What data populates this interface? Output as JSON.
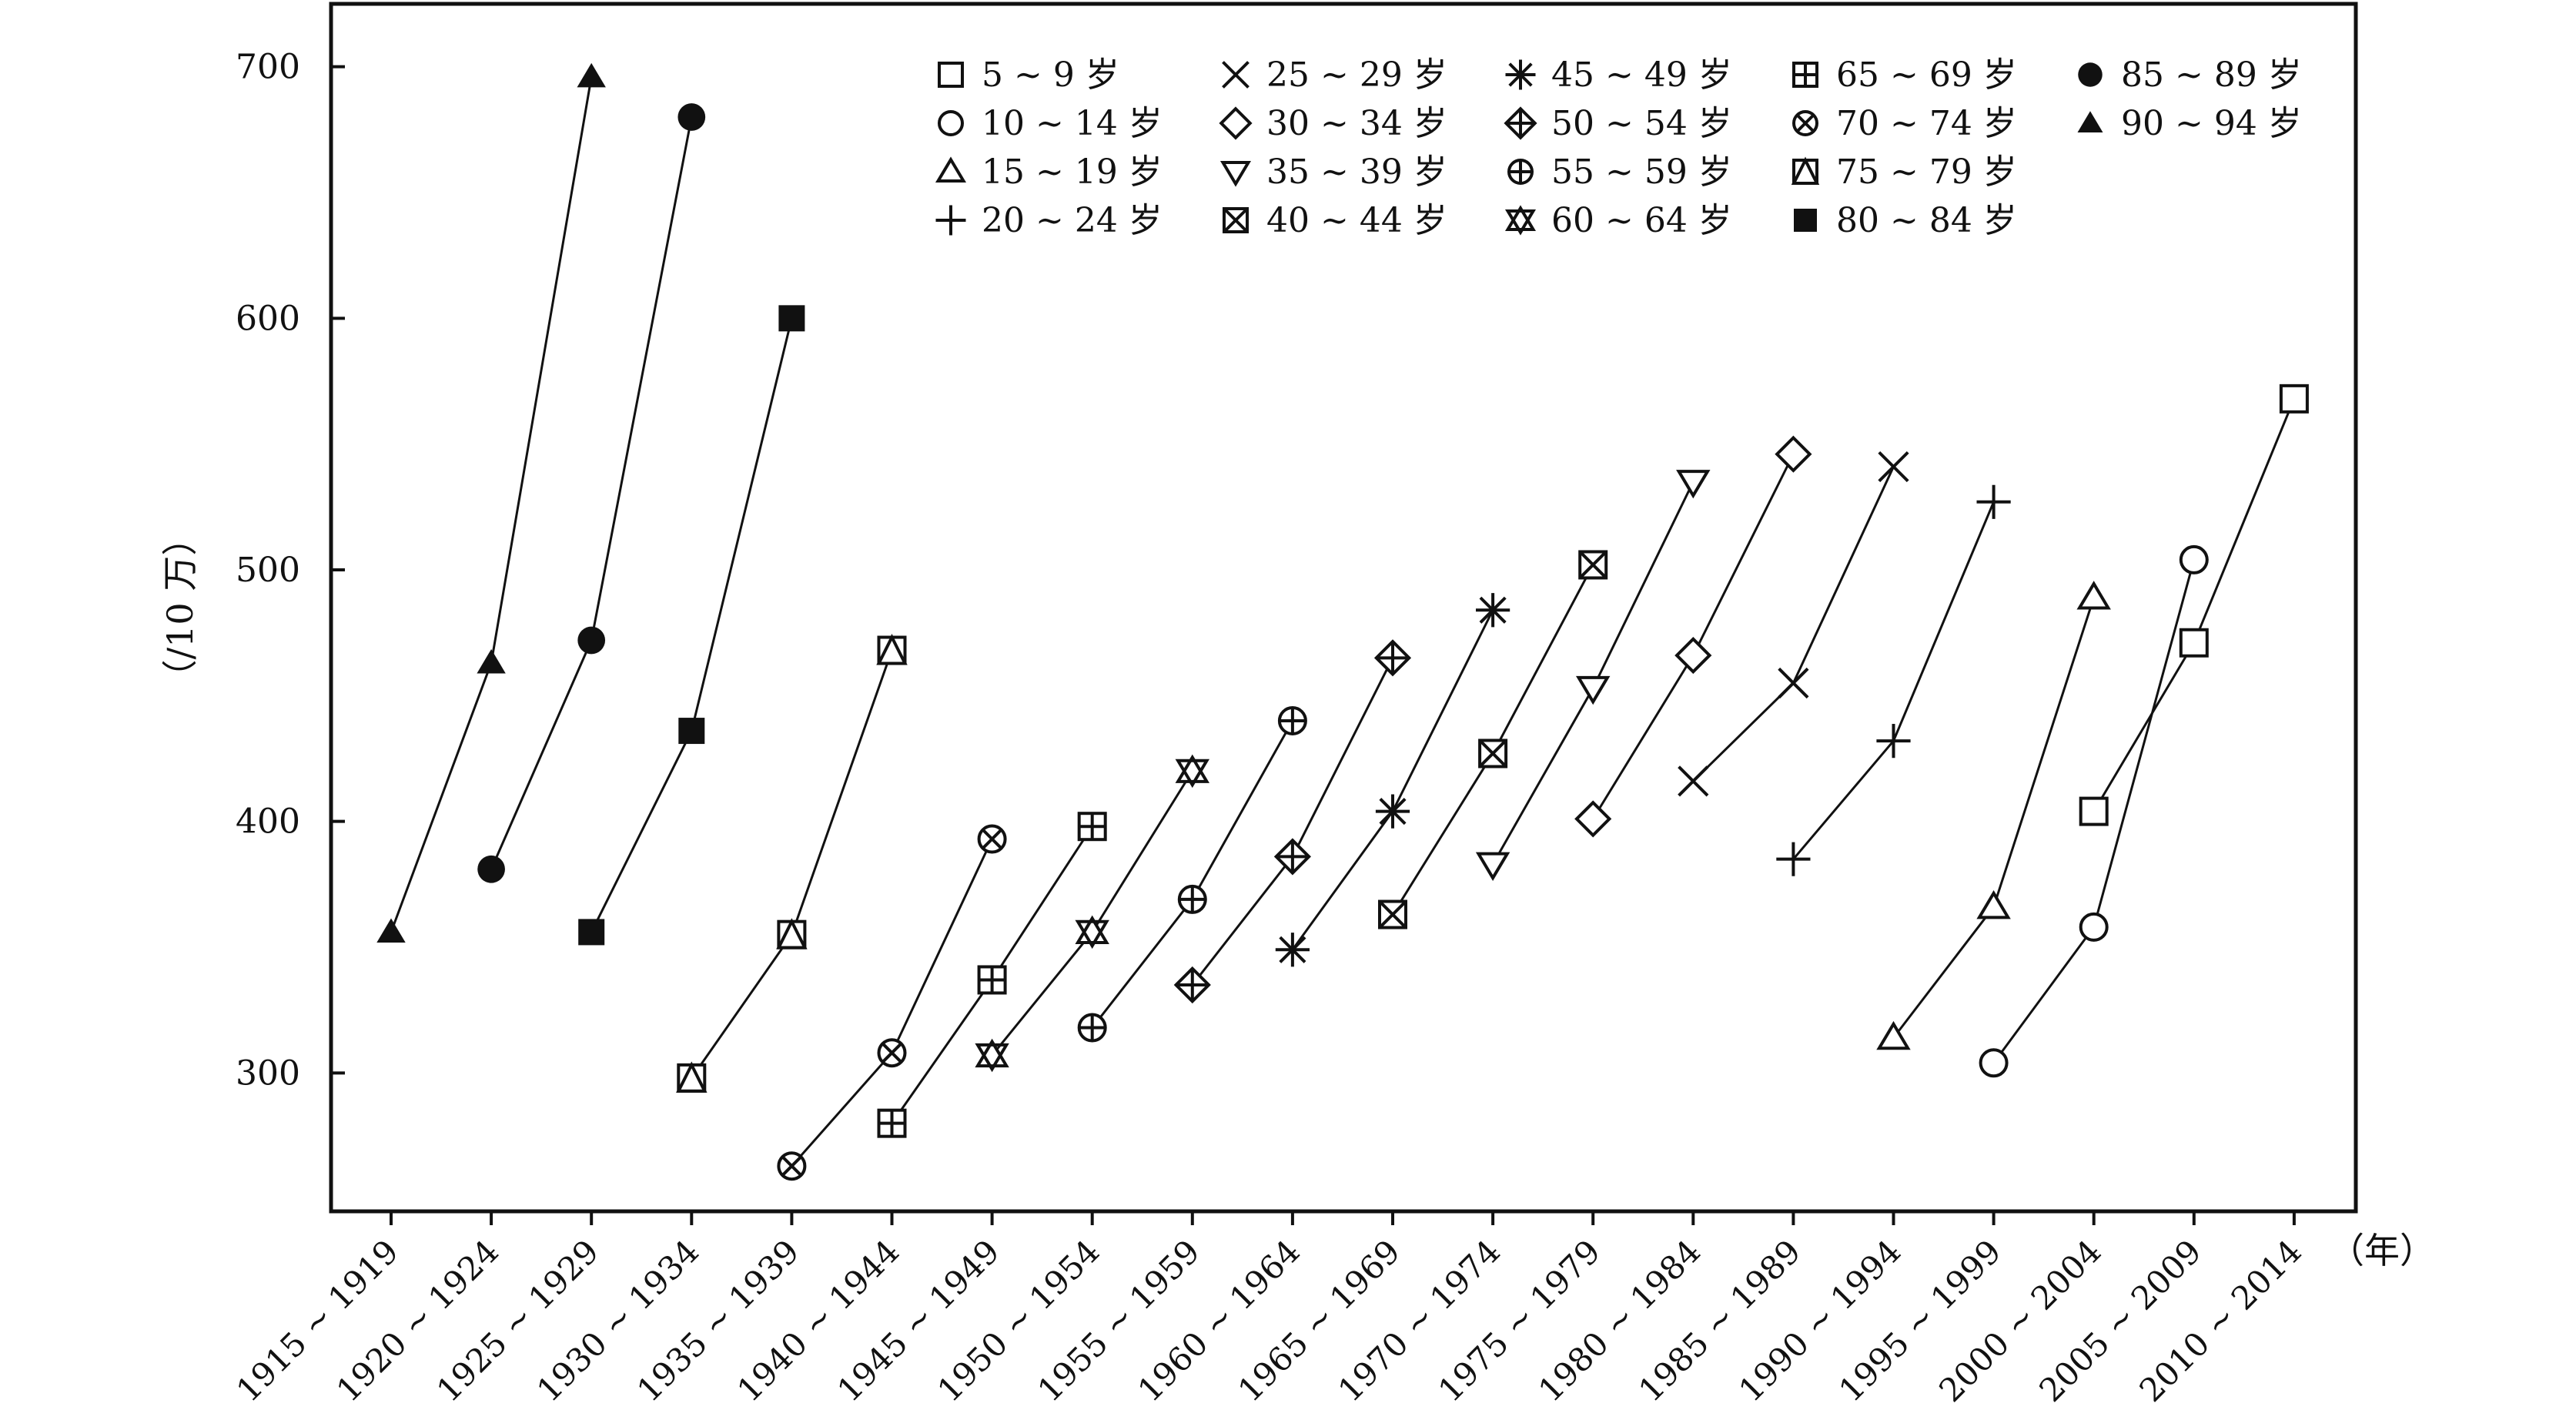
{
  "chart_data": {
    "type": "line",
    "x_unit": "（年）",
    "y_unit": "（/10 万）",
    "ylim": [
      245,
      725
    ],
    "y_ticks": [
      300,
      400,
      500,
      600,
      700
    ],
    "categories": [
      "1915 ~ 1919",
      "1920 ~ 1924",
      "1925 ~ 1929",
      "1930 ~ 1934",
      "1935 ~ 1939",
      "1940 ~ 1944",
      "1945 ~ 1949",
      "1950 ~ 1954",
      "1955 ~ 1959",
      "1960 ~ 1964",
      "1965 ~ 1969",
      "1970 ~ 1974",
      "1975 ~ 1979",
      "1980 ~ 1984",
      "1985 ~ 1989",
      "1990 ~ 1994",
      "1995 ~ 1999",
      "2000 ~ 2004",
      "2005 ~ 2009",
      "2010 ~ 2014"
    ],
    "grid": false,
    "legend_position": "top",
    "series": [
      {
        "name": "5 ~ 9 岁",
        "marker": "square-open",
        "points": [
          [
            17,
            404
          ],
          [
            18,
            471
          ],
          [
            19,
            568
          ]
        ]
      },
      {
        "name": "10 ~ 14 岁",
        "marker": "circle-open",
        "points": [
          [
            16,
            304
          ],
          [
            17,
            358
          ],
          [
            18,
            504
          ]
        ]
      },
      {
        "name": "15 ~ 19 岁",
        "marker": "triangle-open",
        "points": [
          [
            15,
            314
          ],
          [
            16,
            366
          ],
          [
            17,
            489
          ]
        ]
      },
      {
        "name": "20 ~ 24 岁",
        "marker": "plus",
        "points": [
          [
            14,
            385
          ],
          [
            15,
            432
          ],
          [
            16,
            527
          ]
        ]
      },
      {
        "name": "25 ~ 29 岁",
        "marker": "cross",
        "points": [
          [
            13,
            416
          ],
          [
            14,
            455
          ],
          [
            15,
            541
          ]
        ]
      },
      {
        "name": "30 ~ 34 岁",
        "marker": "diamond-open",
        "points": [
          [
            12,
            401
          ],
          [
            13,
            466
          ],
          [
            14,
            546
          ]
        ]
      },
      {
        "name": "35 ~ 39 岁",
        "marker": "triangle-down-open",
        "points": [
          [
            11,
            383
          ],
          [
            12,
            453
          ],
          [
            13,
            535
          ]
        ]
      },
      {
        "name": "40 ~ 44 岁",
        "marker": "square-x",
        "points": [
          [
            10,
            363
          ],
          [
            11,
            427
          ],
          [
            12,
            502
          ]
        ]
      },
      {
        "name": "45 ~ 49 岁",
        "marker": "asterisk",
        "points": [
          [
            9,
            349
          ],
          [
            10,
            404
          ],
          [
            11,
            484
          ]
        ]
      },
      {
        "name": "50 ~ 54 岁",
        "marker": "diamond-plus",
        "points": [
          [
            8,
            335
          ],
          [
            9,
            386
          ],
          [
            10,
            465
          ]
        ]
      },
      {
        "name": "55 ~ 59 岁",
        "marker": "circle-plus",
        "points": [
          [
            7,
            318
          ],
          [
            8,
            369
          ],
          [
            9,
            440
          ]
        ]
      },
      {
        "name": "60 ~ 64 岁",
        "marker": "hexagram",
        "points": [
          [
            6,
            307
          ],
          [
            7,
            356
          ],
          [
            8,
            420
          ]
        ]
      },
      {
        "name": "65 ~ 69 岁",
        "marker": "square-plus",
        "points": [
          [
            5,
            280
          ],
          [
            6,
            337
          ],
          [
            7,
            398
          ]
        ]
      },
      {
        "name": "70 ~ 74 岁",
        "marker": "circle-x",
        "points": [
          [
            4,
            263
          ],
          [
            5,
            308
          ],
          [
            6,
            393
          ]
        ]
      },
      {
        "name": "75 ~ 79 岁",
        "marker": "square-triangle",
        "points": [
          [
            3,
            298
          ],
          [
            4,
            355
          ],
          [
            5,
            468
          ]
        ]
      },
      {
        "name": "80 ~ 84 岁",
        "marker": "square-filled",
        "points": [
          [
            2,
            356
          ],
          [
            3,
            436
          ],
          [
            4,
            600
          ]
        ]
      },
      {
        "name": "85 ~ 89 岁",
        "marker": "circle-filled",
        "points": [
          [
            1,
            381
          ],
          [
            2,
            472
          ],
          [
            3,
            680
          ]
        ]
      },
      {
        "name": "90 ~ 94 岁",
        "marker": "triangle-filled",
        "points": [
          [
            0,
            356
          ],
          [
            1,
            463
          ],
          [
            2,
            696
          ]
        ]
      }
    ]
  }
}
